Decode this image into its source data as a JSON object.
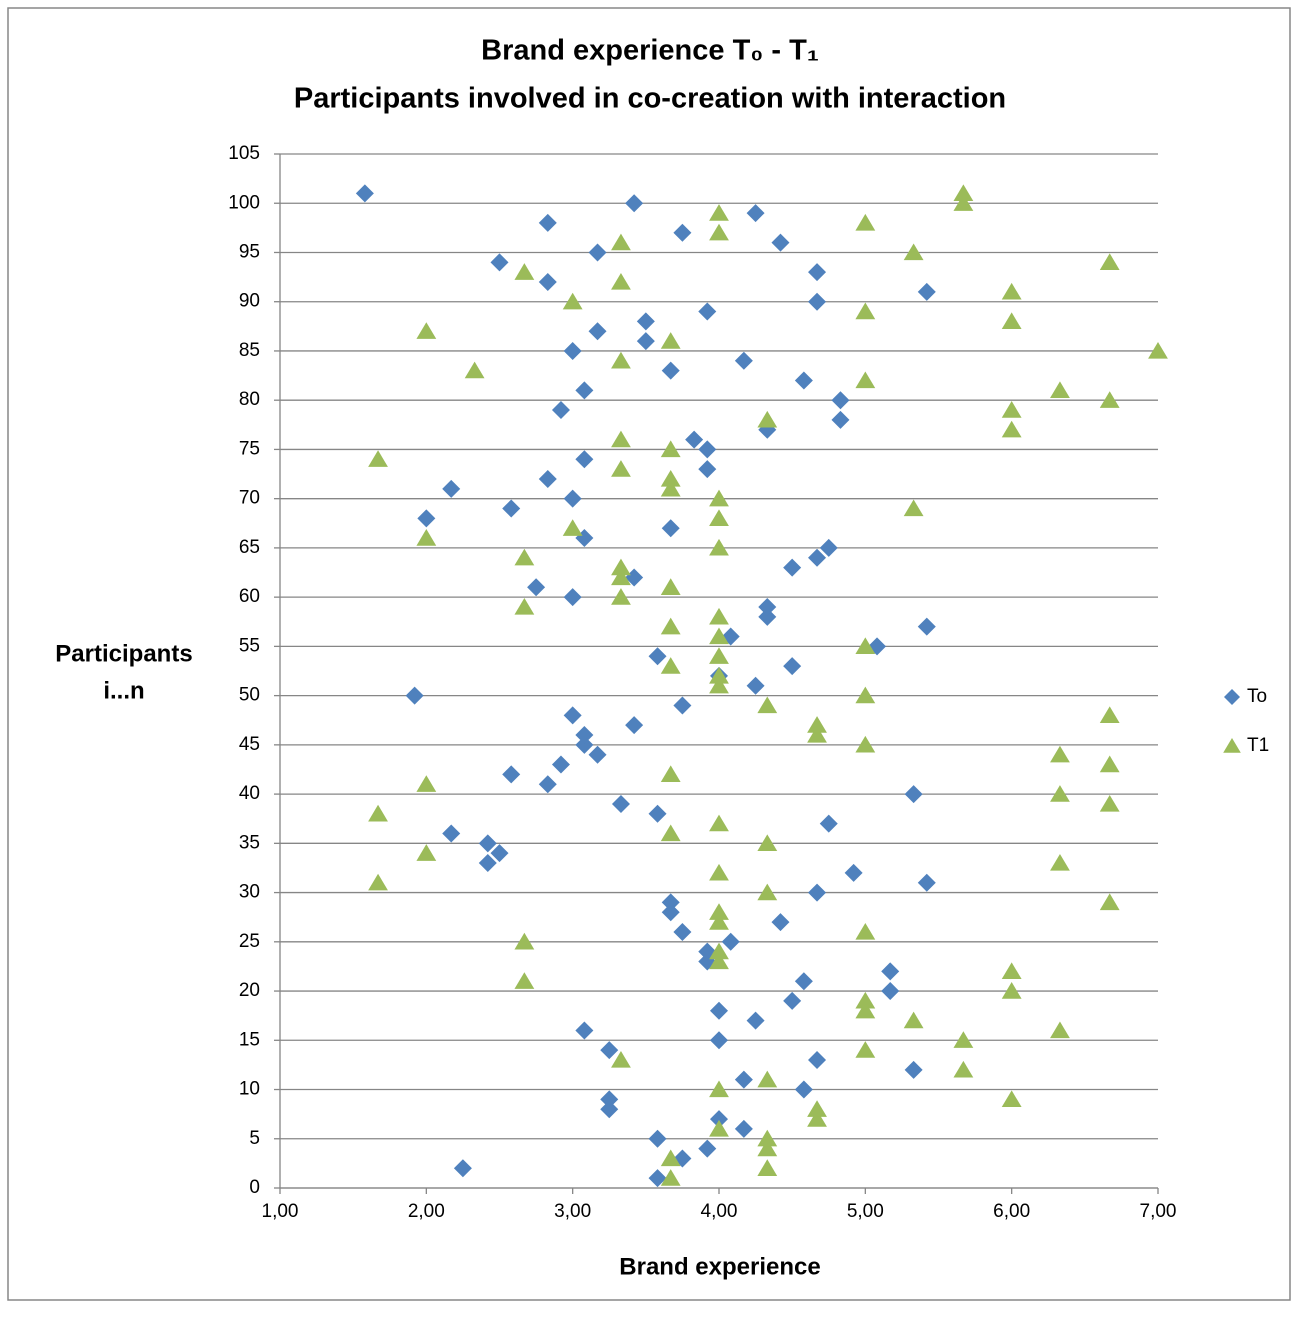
{
  "chart_data": {
    "type": "scatter",
    "title": "Brand experience T₀ - T₁",
    "subtitle": "Participants involved in co-creation with interaction",
    "x_label": "Brand experience",
    "y_label": [
      "Participants",
      "i...n"
    ],
    "xlim": [
      1,
      7
    ],
    "xticks": [
      {
        "value": 1,
        "label": "1,00"
      },
      {
        "value": 2,
        "label": "2,00"
      },
      {
        "value": 3,
        "label": "3,00"
      },
      {
        "value": 4,
        "label": "4,00"
      },
      {
        "value": 5,
        "label": "5,00"
      },
      {
        "value": 6,
        "label": "6,00"
      },
      {
        "value": 7,
        "label": "7,00"
      }
    ],
    "ylim": [
      0,
      105
    ],
    "yticks": [
      0,
      5,
      10,
      15,
      20,
      25,
      30,
      35,
      40,
      45,
      50,
      55,
      60,
      65,
      70,
      75,
      80,
      85,
      90,
      95,
      100,
      105
    ],
    "grid": true,
    "legend": "right",
    "y": [
      1,
      2,
      3,
      4,
      5,
      6,
      7,
      8,
      9,
      10,
      11,
      12,
      13,
      14,
      15,
      16,
      17,
      18,
      19,
      20,
      21,
      22,
      23,
      24,
      25,
      26,
      27,
      28,
      29,
      30,
      31,
      32,
      33,
      34,
      35,
      36,
      37,
      38,
      39,
      40,
      41,
      42,
      43,
      44,
      45,
      46,
      47,
      48,
      49,
      50,
      51,
      52,
      53,
      54,
      55,
      56,
      57,
      58,
      59,
      60,
      61,
      62,
      63,
      64,
      65,
      66,
      67,
      68,
      69,
      70,
      71,
      72,
      73,
      74,
      75,
      76,
      77,
      78,
      79,
      80,
      81,
      82,
      83,
      84,
      85,
      86,
      87,
      88,
      89,
      90,
      91,
      92,
      93,
      94,
      95,
      96,
      97,
      98,
      99,
      100,
      101
    ],
    "series": [
      {
        "name": "To",
        "color": "#4f81bd",
        "marker": "diamond",
        "x": [
          3.58,
          2.25,
          3.75,
          3.92,
          3.58,
          4.17,
          4.0,
          3.25,
          3.25,
          4.58,
          4.17,
          5.33,
          4.67,
          3.25,
          4.0,
          3.08,
          4.25,
          4.0,
          4.5,
          5.17,
          4.58,
          5.17,
          3.92,
          3.92,
          4.08,
          3.75,
          4.42,
          3.67,
          3.67,
          4.67,
          5.42,
          4.92,
          2.42,
          2.5,
          2.42,
          2.17,
          4.75,
          3.58,
          3.33,
          5.33,
          2.83,
          2.58,
          2.92,
          3.17,
          3.08,
          3.08,
          3.42,
          3.0,
          3.75,
          1.92,
          4.25,
          4.0,
          4.5,
          3.58,
          5.08,
          4.08,
          5.42,
          4.33,
          4.33,
          3.0,
          2.75,
          3.42,
          4.5,
          4.67,
          4.75,
          3.08,
          3.67,
          2.0,
          2.58,
          3.0,
          2.17,
          2.83,
          3.92,
          3.08,
          3.92,
          3.83,
          4.33,
          4.83,
          2.92,
          4.83,
          3.08,
          4.58,
          3.67,
          4.17,
          3.0,
          3.5,
          3.17,
          3.5,
          3.92,
          4.67,
          5.42,
          2.83,
          4.67,
          2.5,
          3.17,
          4.42,
          3.75,
          2.83,
          4.25,
          3.42,
          1.58
        ]
      },
      {
        "name": "T1",
        "color": "#9bbb59",
        "marker": "triangle",
        "x": [
          3.67,
          4.33,
          3.67,
          4.33,
          4.33,
          4.0,
          4.67,
          4.67,
          6.0,
          4.0,
          4.33,
          5.67,
          3.33,
          5.0,
          5.67,
          6.33,
          5.33,
          5.0,
          5.0,
          6.0,
          2.67,
          6.0,
          4.0,
          4.0,
          2.67,
          5.0,
          4.0,
          4.0,
          6.67,
          4.33,
          1.67,
          4.0,
          6.33,
          2.0,
          4.33,
          3.67,
          4.0,
          1.67,
          6.67,
          6.33,
          2.0,
          3.67,
          6.67,
          6.33,
          5.0,
          4.67,
          4.67,
          6.67,
          4.33,
          5.0,
          4.0,
          4.0,
          3.67,
          4.0,
          5.0,
          4.0,
          3.67,
          4.0,
          2.67,
          3.33,
          3.67,
          3.33,
          3.33,
          2.67,
          4.0,
          2.0,
          3.0,
          4.0,
          5.33,
          4.0,
          3.67,
          3.67,
          3.33,
          1.67,
          3.67,
          3.33,
          6.0,
          4.33,
          6.0,
          6.67,
          6.33,
          5.0,
          2.33,
          3.33,
          7.0,
          3.67,
          2.0,
          6.0,
          5.0,
          3.0,
          6.0,
          3.33,
          2.67,
          6.67,
          5.33,
          3.33,
          4.0,
          5.0,
          4.0,
          5.67,
          5.67
        ]
      }
    ]
  }
}
